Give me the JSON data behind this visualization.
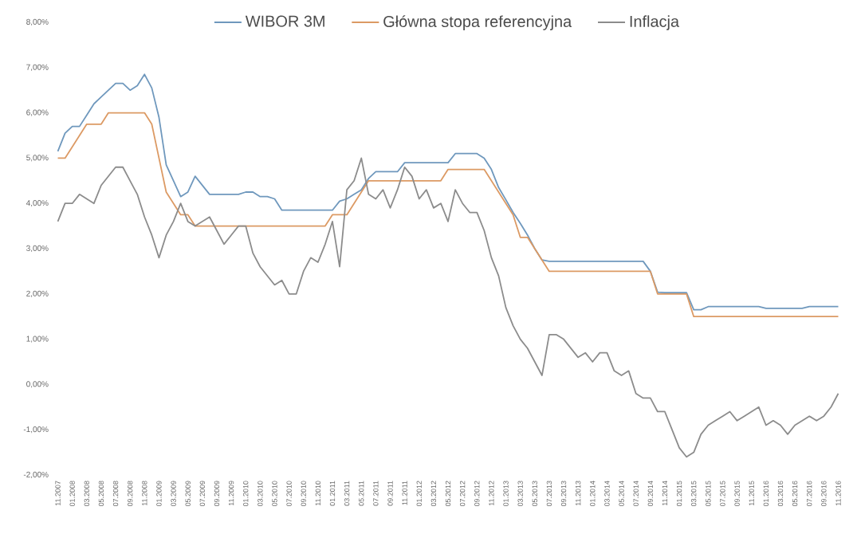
{
  "chart_data": {
    "type": "line",
    "legend": "top",
    "marker": "none",
    "line_style": "solid",
    "ylim": [
      -2,
      8
    ],
    "yticks": [
      {
        "value": -2,
        "label": "-2,00%"
      },
      {
        "value": -1,
        "label": "-1,00%"
      },
      {
        "value": 0,
        "label": "0,00%"
      },
      {
        "value": 1,
        "label": "1,00%"
      },
      {
        "value": 2,
        "label": "2,00%"
      },
      {
        "value": 3,
        "label": "3,00%"
      },
      {
        "value": 4,
        "label": "4,00%"
      },
      {
        "value": 5,
        "label": "5,00%"
      },
      {
        "value": 6,
        "label": "6,00%"
      },
      {
        "value": 7,
        "label": "7,00%"
      },
      {
        "value": 8,
        "label": "8,00%"
      }
    ],
    "categories": [
      "11.2007",
      null,
      "01.2008",
      null,
      "03.2008",
      null,
      "05.2008",
      null,
      "07.2008",
      null,
      "09.2008",
      null,
      "11.2008",
      null,
      "01.2009",
      null,
      "03.2009",
      null,
      "05.2009",
      null,
      "07.2009",
      null,
      "09.2009",
      null,
      "11.2009",
      null,
      "01.2010",
      null,
      "03.2010",
      null,
      "05.2010",
      null,
      "07.2010",
      null,
      "09.2010",
      null,
      "11.2010",
      null,
      "01.2011",
      null,
      "03.2011",
      null,
      "05.2011",
      null,
      "07.2011",
      null,
      "09.2011",
      null,
      "11.2011",
      null,
      "01.2012",
      null,
      "03.2012",
      null,
      "05.2012",
      null,
      "07.2012",
      null,
      "09.2012",
      null,
      "11.2012",
      null,
      "01.2013",
      null,
      "03.2013",
      null,
      "05.2013",
      null,
      "07.2013",
      null,
      "09.2013",
      null,
      "11.2013",
      null,
      "01.2014",
      null,
      "03.2014",
      null,
      "05.2014",
      null,
      "07.2014",
      null,
      "09.2014",
      null,
      "11.2014",
      null,
      "01.2015",
      null,
      "03.2015",
      null,
      "05.2015",
      null,
      "07.2015",
      null,
      "09.2015",
      null,
      "11.2015",
      null,
      "01.2016",
      null,
      "03.2016",
      null,
      "05.2016",
      null,
      "07.2016",
      null,
      "09.2016",
      null,
      "11.2016"
    ],
    "series": [
      {
        "name": "WIBOR 3M",
        "color": "#6f98bd",
        "values": [
          5.15,
          5.55,
          5.7,
          5.7,
          5.95,
          6.2,
          6.35,
          6.5,
          6.65,
          6.65,
          6.5,
          6.6,
          6.85,
          6.55,
          5.9,
          4.85,
          4.5,
          4.15,
          4.25,
          4.6,
          4.4,
          4.2,
          4.2,
          4.2,
          4.2,
          4.2,
          4.25,
          4.25,
          4.15,
          4.15,
          4.1,
          3.85,
          3.85,
          3.85,
          3.85,
          3.85,
          3.85,
          3.85,
          3.85,
          4.05,
          4.1,
          4.2,
          4.3,
          4.55,
          4.7,
          4.7,
          4.7,
          4.7,
          4.9,
          4.9,
          4.9,
          4.9,
          4.9,
          4.9,
          4.9,
          5.1,
          5.1,
          5.1,
          5.1,
          5.0,
          4.75,
          4.35,
          4.08,
          3.8,
          3.56,
          3.3,
          3.0,
          2.75,
          2.72,
          2.72,
          2.72,
          2.72,
          2.72,
          2.72,
          2.72,
          2.72,
          2.72,
          2.72,
          2.72,
          2.72,
          2.72,
          2.72,
          2.5,
          2.04,
          2.03,
          2.03,
          2.03,
          2.03,
          1.65,
          1.65,
          1.72,
          1.72,
          1.72,
          1.72,
          1.72,
          1.72,
          1.72,
          1.72,
          1.68,
          1.68,
          1.68,
          1.68,
          1.68,
          1.68,
          1.72,
          1.72,
          1.72,
          1.72,
          1.72
        ]
      },
      {
        "name": "Główna stopa referencyjna",
        "color": "#dc9a64",
        "values": [
          5,
          5,
          5.25,
          5.5,
          5.75,
          5.75,
          5.75,
          6,
          6,
          6,
          6,
          6,
          6,
          5.75,
          5,
          4.25,
          4,
          3.75,
          3.75,
          3.5,
          3.5,
          3.5,
          3.5,
          3.5,
          3.5,
          3.5,
          3.5,
          3.5,
          3.5,
          3.5,
          3.5,
          3.5,
          3.5,
          3.5,
          3.5,
          3.5,
          3.5,
          3.5,
          3.75,
          3.75,
          3.75,
          4,
          4.25,
          4.5,
          4.5,
          4.5,
          4.5,
          4.5,
          4.5,
          4.5,
          4.5,
          4.5,
          4.5,
          4.5,
          4.75,
          4.75,
          4.75,
          4.75,
          4.75,
          4.75,
          4.5,
          4.25,
          4,
          3.75,
          3.25,
          3.25,
          3,
          2.75,
          2.5,
          2.5,
          2.5,
          2.5,
          2.5,
          2.5,
          2.5,
          2.5,
          2.5,
          2.5,
          2.5,
          2.5,
          2.5,
          2.5,
          2.5,
          2,
          2,
          2,
          2,
          2,
          1.5,
          1.5,
          1.5,
          1.5,
          1.5,
          1.5,
          1.5,
          1.5,
          1.5,
          1.5,
          1.5,
          1.5,
          1.5,
          1.5,
          1.5,
          1.5,
          1.5,
          1.5,
          1.5,
          1.5,
          1.5
        ]
      },
      {
        "name": "Inflacja",
        "color": "#8c8c8c",
        "values": [
          3.6,
          4.0,
          4.0,
          4.2,
          4.1,
          4.0,
          4.4,
          4.6,
          4.8,
          4.8,
          4.5,
          4.2,
          3.7,
          3.3,
          2.8,
          3.3,
          3.6,
          4.0,
          3.6,
          3.5,
          3.6,
          3.7,
          3.4,
          3.1,
          3.3,
          3.5,
          3.5,
          2.9,
          2.6,
          2.4,
          2.2,
          2.3,
          2.0,
          2.0,
          2.5,
          2.8,
          2.7,
          3.1,
          3.6,
          2.6,
          4.3,
          4.5,
          5.0,
          4.2,
          4.1,
          4.3,
          3.9,
          4.3,
          4.8,
          4.6,
          4.1,
          4.3,
          3.9,
          4.0,
          3.6,
          4.3,
          4.0,
          3.8,
          3.8,
          3.4,
          2.8,
          2.4,
          1.7,
          1.3,
          1.0,
          0.8,
          0.5,
          0.2,
          1.1,
          1.1,
          1.0,
          0.8,
          0.6,
          0.7,
          0.5,
          0.7,
          0.7,
          0.3,
          0.2,
          0.3,
          -0.2,
          -0.3,
          -0.3,
          -0.6,
          -0.6,
          -1.0,
          -1.4,
          -1.6,
          -1.5,
          -1.1,
          -0.9,
          -0.8,
          -0.7,
          -0.6,
          -0.8,
          -0.7,
          -0.6,
          -0.5,
          -0.9,
          -0.8,
          -0.9,
          -1.1,
          -0.9,
          -0.8,
          -0.7,
          -0.8,
          -0.7,
          -0.5,
          -0.2
        ]
      }
    ]
  }
}
